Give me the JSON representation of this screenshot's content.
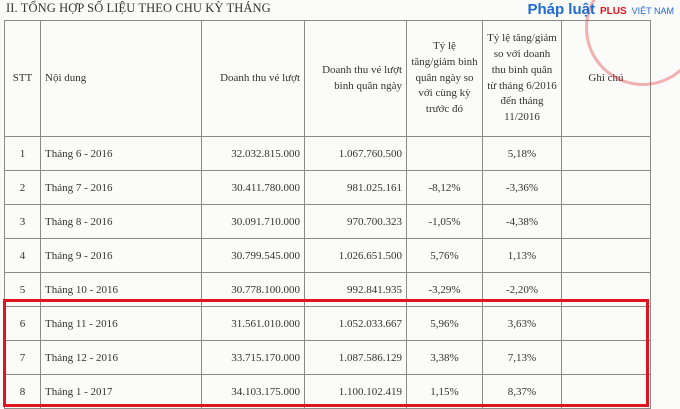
{
  "title": "II. TỔNG HỢP SỐ LIỆU THEO CHU KỲ THÁNG",
  "headers": [
    "STT",
    "Nội dung",
    "Doanh thu vé lượt",
    "Doanh thu vé lượt bình quân ngày",
    "Tỷ lệ tăng/giảm bình quân ngày so với cùng kỳ trước đó",
    "Tỷ lệ tăng/giảm so với doanh thu bình quân từ tháng 6/2016 đến tháng 11/2016",
    "Ghi chú"
  ],
  "rows": [
    [
      "1",
      "Tháng 6 - 2016",
      "32.032.815.000",
      "1.067.760.500",
      "",
      "5,18%",
      ""
    ],
    [
      "2",
      "Tháng 7 - 2016",
      "30.411.780.000",
      "981.025.161",
      "-8,12%",
      "-3,36%",
      ""
    ],
    [
      "3",
      "Tháng 8 - 2016",
      "30.091.710.000",
      "970.700.323",
      "-1,05%",
      "-4,38%",
      ""
    ],
    [
      "4",
      "Tháng 9 - 2016",
      "30.799.545.000",
      "1.026.651.500",
      "5,76%",
      "1,13%",
      ""
    ],
    [
      "5",
      "Tháng 10 - 2016",
      "30.778.100.000",
      "992.841.935",
      "-3,29%",
      "-2,20%",
      ""
    ],
    [
      "6",
      "Tháng 11 - 2016",
      "31.561.010.000",
      "1.052.033.667",
      "5,96%",
      "3,63%",
      ""
    ],
    [
      "7",
      "Tháng 12 - 2016",
      "33.715.170.000",
      "1.087.586.129",
      "3,38%",
      "7,13%",
      ""
    ],
    [
      "8",
      "Tháng 1 - 2017",
      "34.103.175.000",
      "1.100.102.419",
      "1,15%",
      "8,37%",
      ""
    ]
  ],
  "watermark": {
    "brand": "Pháp luật",
    "plus": "PLUS",
    "country": "VIỆT NAM"
  },
  "colors": {
    "highlight": "#e0141e",
    "brand": "#1f6ad3"
  }
}
